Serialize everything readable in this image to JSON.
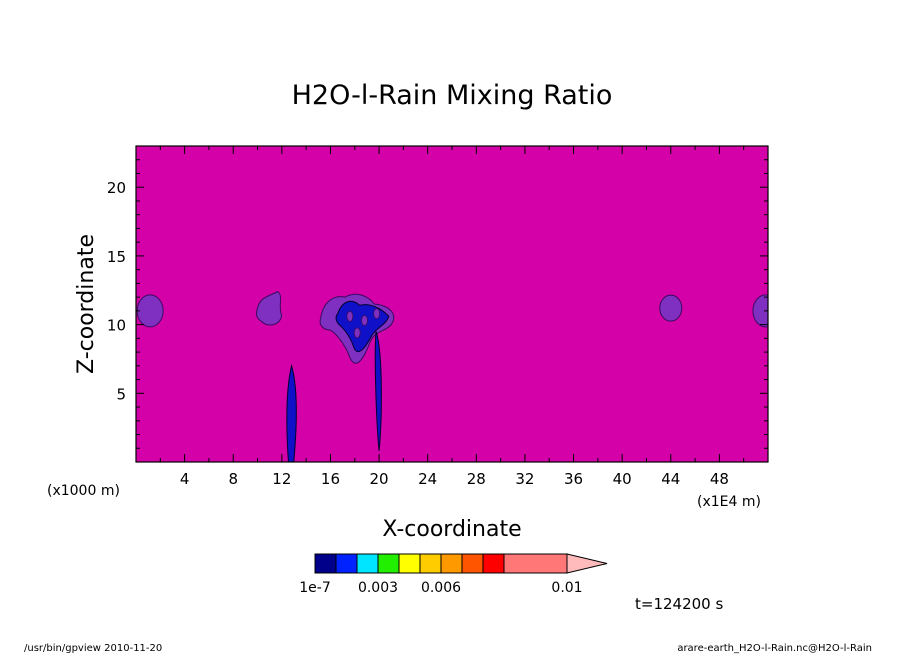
{
  "chart_data": {
    "type": "heatmap",
    "title": "H2O-l-Rain Mixing Ratio",
    "xlabel": "X-coordinate",
    "ylabel": "Z-coordinate",
    "x_unit_left": "(x1000 m)",
    "x_unit_right": "(x1E4 m)",
    "xlim": [
      0,
      52
    ],
    "ylim": [
      0,
      23
    ],
    "x_ticks": [
      4,
      8,
      12,
      16,
      20,
      24,
      28,
      32,
      36,
      40,
      44,
      48
    ],
    "y_ticks": [
      5,
      10,
      15,
      20
    ],
    "background_level": "below 1e-7",
    "colorbar": {
      "labels": [
        {
          "text": "1e-7",
          "at": 0
        },
        {
          "text": "0.003",
          "at": 3
        },
        {
          "text": "0.006",
          "at": 6
        },
        {
          "text": "0.01",
          "at": 10
        }
      ],
      "colors": [
        "#00008b",
        "#0022ff",
        "#00e5ff",
        "#22ee00",
        "#ffff00",
        "#ffcc00",
        "#ff9900",
        "#ff5500",
        "#ff0000",
        "#ff7777",
        "#ffbbbb"
      ]
    },
    "time_label": "t=124200 s",
    "features": [
      {
        "name": "cloud-blob-left-edge",
        "x": 1,
        "z": 11,
        "level": "purple"
      },
      {
        "name": "cloud-blob-x11",
        "x": 11,
        "z": 10.8,
        "level": "purple"
      },
      {
        "name": "rain-shaft-x13",
        "x": 12.8,
        "z": 4,
        "level": "blue"
      },
      {
        "name": "rain-cell-x18",
        "x": 18.5,
        "z": 10,
        "level": "blue"
      },
      {
        "name": "rain-shaft-x20",
        "x": 20,
        "z": 5,
        "level": "blue"
      },
      {
        "name": "cloud-blob-x44",
        "x": 44,
        "z": 11.2,
        "level": "purple"
      },
      {
        "name": "cloud-blob-right-edge",
        "x": 51.5,
        "z": 11,
        "level": "purple"
      }
    ]
  },
  "footer": {
    "left": "/usr/bin/gpview  2010-11-20",
    "right": "arare-earth_H2O-l-Rain.nc@H2O-l-Rain"
  },
  "colors": {
    "field_background": "#d400a8",
    "purple_contour": "#8030c0",
    "blue_contour": "#1010c8"
  }
}
